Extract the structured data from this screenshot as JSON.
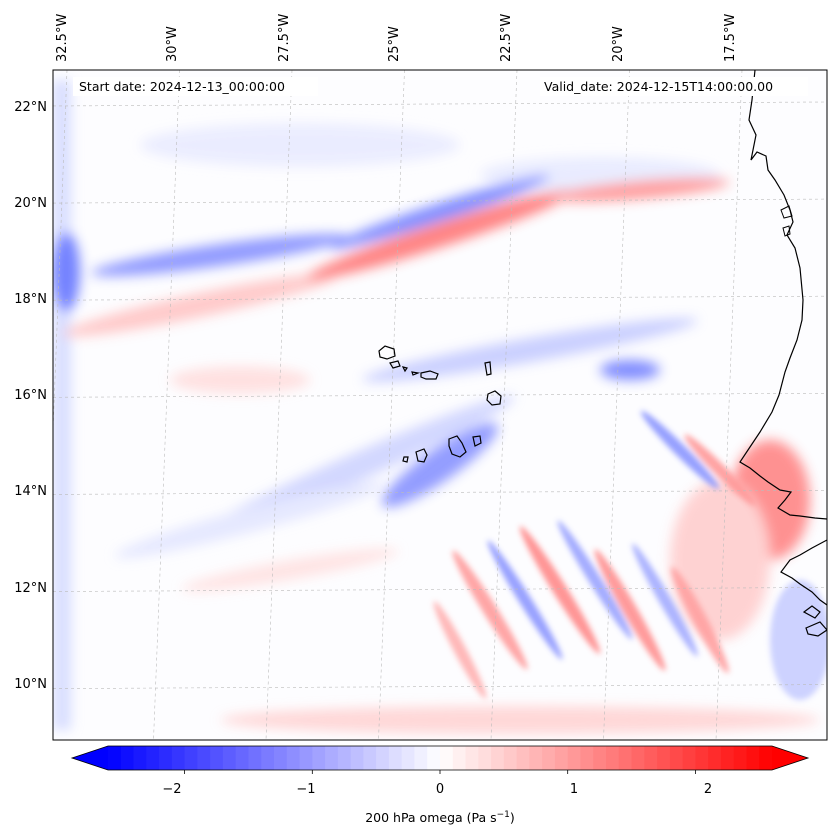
{
  "map": {
    "start_label": "Start date: 2024-12-13_00:00:00",
    "valid_label": "Valid_date: 2024-12-15T14:00:00.00",
    "lon_ticks": [
      "32.5°W",
      "30°W",
      "27.5°W",
      "25°W",
      "22.5°W",
      "20°W",
      "17.5°W"
    ],
    "lat_ticks": [
      "22°N",
      "20°N",
      "18°N",
      "16°N",
      "14°N",
      "12°N",
      "10°N"
    ],
    "lon_values": [
      -32.5,
      -30,
      -27.5,
      -25,
      -22.5,
      -20,
      -17.5
    ],
    "lat_values": [
      22,
      20,
      18,
      16,
      14,
      12,
      10
    ],
    "extent": {
      "lon_min": -32.5,
      "lon_max": -15.3,
      "lat_min": 8.9,
      "lat_max": 22.7
    },
    "gridlines": true
  },
  "colorbar": {
    "label": "200 hPa omega (Pa s",
    "label_sup": "−1",
    "label_close": ")",
    "ticks": [
      "−2",
      "−1",
      "0",
      "1",
      "2"
    ],
    "tick_values": [
      -2,
      -1,
      0,
      1,
      2
    ],
    "range": [
      -2.6,
      2.6
    ],
    "extend": "both",
    "colormap": "bwr",
    "low_color": "#0000ff",
    "mid_color": "#ffffff",
    "high_color": "#ff0000"
  }
}
